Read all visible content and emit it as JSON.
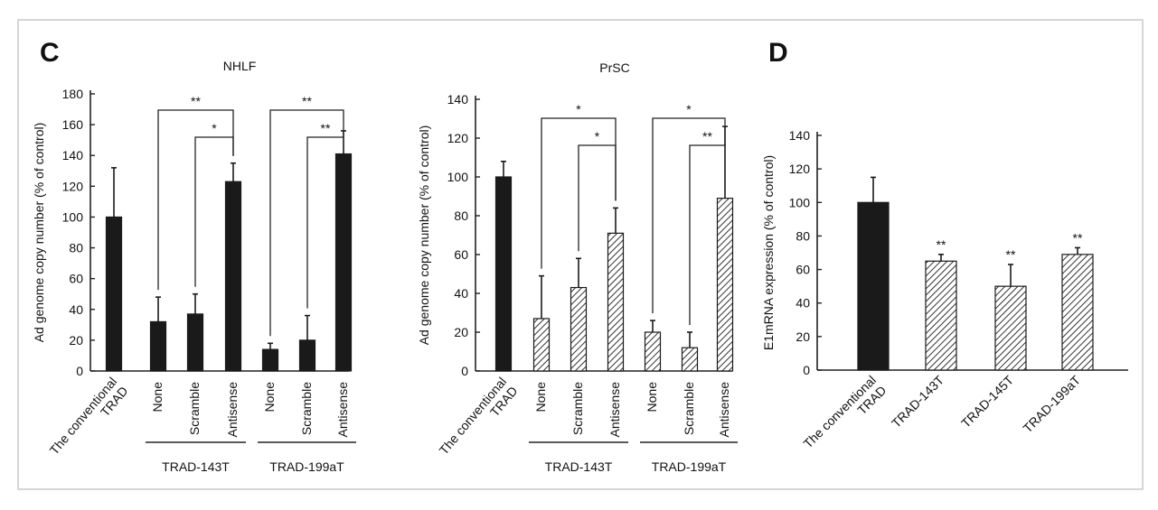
{
  "panels": {
    "C": {
      "label": "C"
    },
    "D": {
      "label": "D"
    }
  },
  "chart_data": [
    {
      "id": "nhlf",
      "type": "bar",
      "title": "NHLF",
      "ylabel": "Ad genome copy number (% of control)",
      "ylim": [
        0,
        180
      ],
      "yticks": [
        0,
        20,
        40,
        60,
        80,
        100,
        120,
        140,
        160,
        180
      ],
      "categories": [
        "The conventional\nTRAD",
        "None",
        "Scramble",
        "Antisense",
        "None",
        "Scramble",
        "Antisense"
      ],
      "values": [
        100,
        32,
        37,
        123,
        14,
        20,
        141
      ],
      "errors": [
        32,
        16,
        13,
        12,
        4,
        16,
        15
      ],
      "fills": [
        "solid",
        "solid",
        "solid",
        "solid",
        "solid",
        "solid",
        "solid"
      ],
      "groups": [
        {
          "label": "TRAD-143T",
          "from": 1,
          "to": 3
        },
        {
          "label": "TRAD-199aT",
          "from": 4,
          "to": 6
        }
      ],
      "significance": [
        {
          "from": 1,
          "to": 3,
          "label": "**"
        },
        {
          "from": 2,
          "to": 3,
          "label": "*"
        },
        {
          "from": 4,
          "to": 6,
          "label": "**"
        },
        {
          "from": 5,
          "to": 6,
          "label": "**"
        }
      ]
    },
    {
      "id": "prsc",
      "type": "bar",
      "title": "PrSC",
      "ylabel": "Ad genome copy number (% of control)",
      "ylim": [
        0,
        140
      ],
      "yticks": [
        0,
        20,
        40,
        60,
        80,
        100,
        120,
        140
      ],
      "categories": [
        "The conventional\nTRAD",
        "None",
        "Scramble",
        "Antisense",
        "None",
        "Scramble",
        "Antisense"
      ],
      "values": [
        100,
        27,
        43,
        71,
        20,
        12,
        89
      ],
      "errors": [
        8,
        22,
        15,
        13,
        6,
        8,
        37
      ],
      "fills": [
        "solid",
        "hatch",
        "hatch",
        "hatch",
        "hatch",
        "hatch",
        "hatch"
      ],
      "groups": [
        {
          "label": "TRAD-143T",
          "from": 1,
          "to": 3
        },
        {
          "label": "TRAD-199aT",
          "from": 4,
          "to": 6
        }
      ],
      "significance": [
        {
          "from": 1,
          "to": 3,
          "label": "*"
        },
        {
          "from": 2,
          "to": 3,
          "label": "*"
        },
        {
          "from": 4,
          "to": 6,
          "label": "*"
        },
        {
          "from": 5,
          "to": 6,
          "label": "**"
        }
      ]
    },
    {
      "id": "e1",
      "type": "bar",
      "title": "",
      "ylabel": "E1mRNA expression (% of control)",
      "ylim": [
        0,
        140
      ],
      "yticks": [
        0,
        20,
        40,
        60,
        80,
        100,
        120,
        140
      ],
      "categories": [
        "The conventional\nTRAD",
        "TRAD-143T",
        "TRAD-145T",
        "TRAD-199aT"
      ],
      "values": [
        100,
        65,
        50,
        69
      ],
      "errors": [
        15,
        4,
        13,
        4
      ],
      "fills": [
        "solid",
        "hatch",
        "hatch",
        "hatch"
      ],
      "starlabels": [
        "",
        "**",
        "**",
        "**"
      ]
    }
  ]
}
